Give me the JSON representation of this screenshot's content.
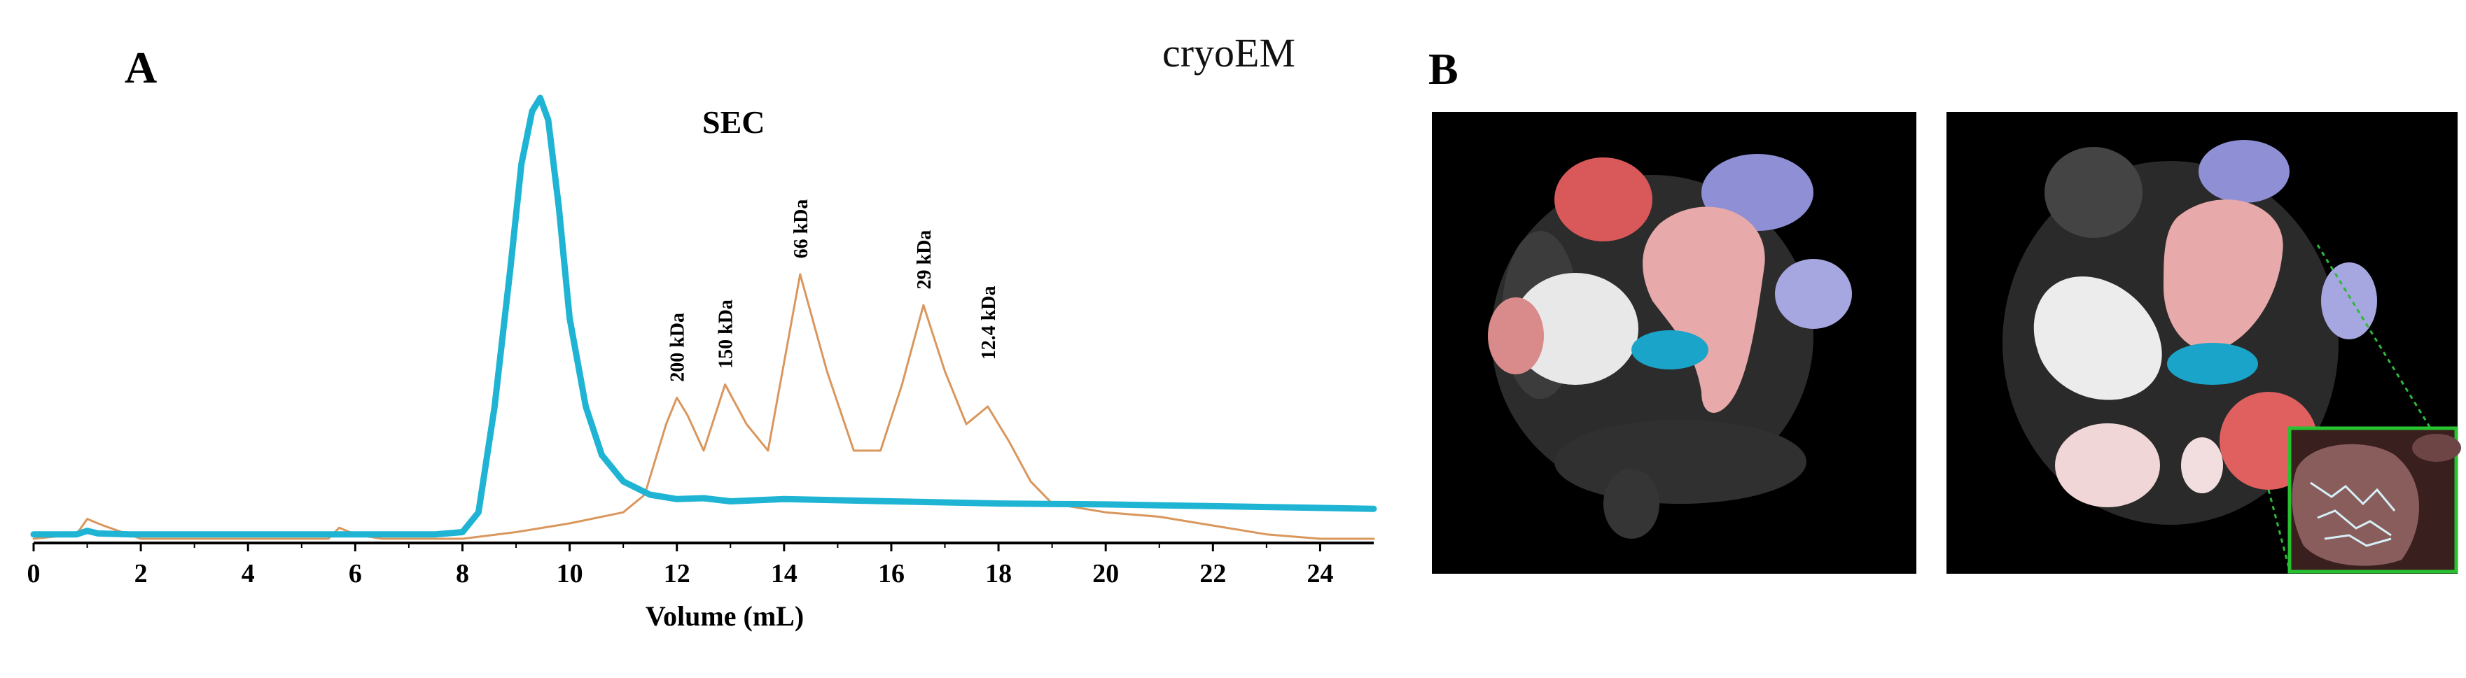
{
  "chart_data": {
    "type": "line",
    "panel_label": "A",
    "title": "SEC",
    "xlabel": "Volume (mL)",
    "ylabel": "",
    "xlim": [
      0,
      25
    ],
    "ylim": [
      0,
      1.0
    ],
    "x_ticks": [
      0,
      2,
      4,
      6,
      8,
      10,
      12,
      14,
      16,
      18,
      20,
      22,
      24
    ],
    "grid": false,
    "series": [
      {
        "name": "",
        "color": "#1fb4d3",
        "x": [
          0,
          0.8,
          1.0,
          1.2,
          1.8,
          7.5,
          8.0,
          8.3,
          8.6,
          8.9,
          9.1,
          9.3,
          9.45,
          9.6,
          9.8,
          10.0,
          10.3,
          10.6,
          11.0,
          11.5,
          12.0,
          12.5,
          13.0,
          14.0,
          16.0,
          18.0,
          20.0,
          22.0,
          24.0,
          25.0
        ],
        "y": [
          0.01,
          0.01,
          0.018,
          0.012,
          0.01,
          0.01,
          0.015,
          0.06,
          0.3,
          0.62,
          0.85,
          0.97,
          1.0,
          0.95,
          0.75,
          0.5,
          0.3,
          0.19,
          0.13,
          0.1,
          0.09,
          0.092,
          0.085,
          0.09,
          0.085,
          0.08,
          0.078,
          0.074,
          0.07,
          0.068
        ]
      },
      {
        "name": "",
        "color": "#d9975e",
        "x": [
          0,
          0.8,
          1.0,
          1.3,
          2.0,
          5.5,
          5.7,
          6.0,
          6.5,
          8.0,
          9.0,
          10.0,
          11.0,
          11.4,
          11.8,
          12.0,
          12.2,
          12.5,
          12.9,
          13.3,
          13.7,
          14.3,
          14.8,
          15.3,
          15.8,
          16.2,
          16.6,
          17.0,
          17.4,
          17.8,
          18.2,
          18.6,
          19.0,
          19.5,
          20.0,
          21.0,
          22.0,
          23.0,
          24.0,
          25.0
        ],
        "y": [
          0.0,
          0.01,
          0.045,
          0.03,
          0.0,
          0.0,
          0.025,
          0.01,
          0.0,
          0.0,
          0.015,
          0.035,
          0.06,
          0.1,
          0.26,
          0.32,
          0.28,
          0.2,
          0.35,
          0.26,
          0.2,
          0.6,
          0.38,
          0.2,
          0.2,
          0.35,
          0.53,
          0.38,
          0.26,
          0.3,
          0.22,
          0.13,
          0.08,
          0.07,
          0.06,
          0.05,
          0.03,
          0.01,
          0.0,
          0.0
        ]
      }
    ],
    "annotations": [
      {
        "text": "200 kDa",
        "x": 12.0,
        "y": 0.34
      },
      {
        "text": "150 kDa",
        "x": 12.9,
        "y": 0.37
      },
      {
        "text": "66 kDa",
        "x": 14.3,
        "y": 0.62
      },
      {
        "text": "29 kDa",
        "x": 16.6,
        "y": 0.55
      },
      {
        "text": "12.4 kDa",
        "x": 17.8,
        "y": 0.39
      }
    ]
  },
  "panel_b": {
    "panel_label": "B",
    "title": "cryoEM"
  }
}
